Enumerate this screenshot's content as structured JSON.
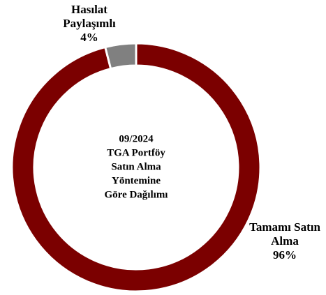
{
  "chart_data": {
    "type": "donut",
    "title": [
      "09/2024",
      "TGA Portföy",
      "Satın Alma",
      "Yöntemine",
      "Göre Dağılımı"
    ],
    "categories": [
      "Tamamı Satın Alma",
      "Hasılat Paylaşımlı"
    ],
    "values": [
      96,
      4
    ],
    "value_labels": [
      "96%",
      "4%"
    ],
    "colors": [
      "#7b0000",
      "#808080"
    ]
  }
}
